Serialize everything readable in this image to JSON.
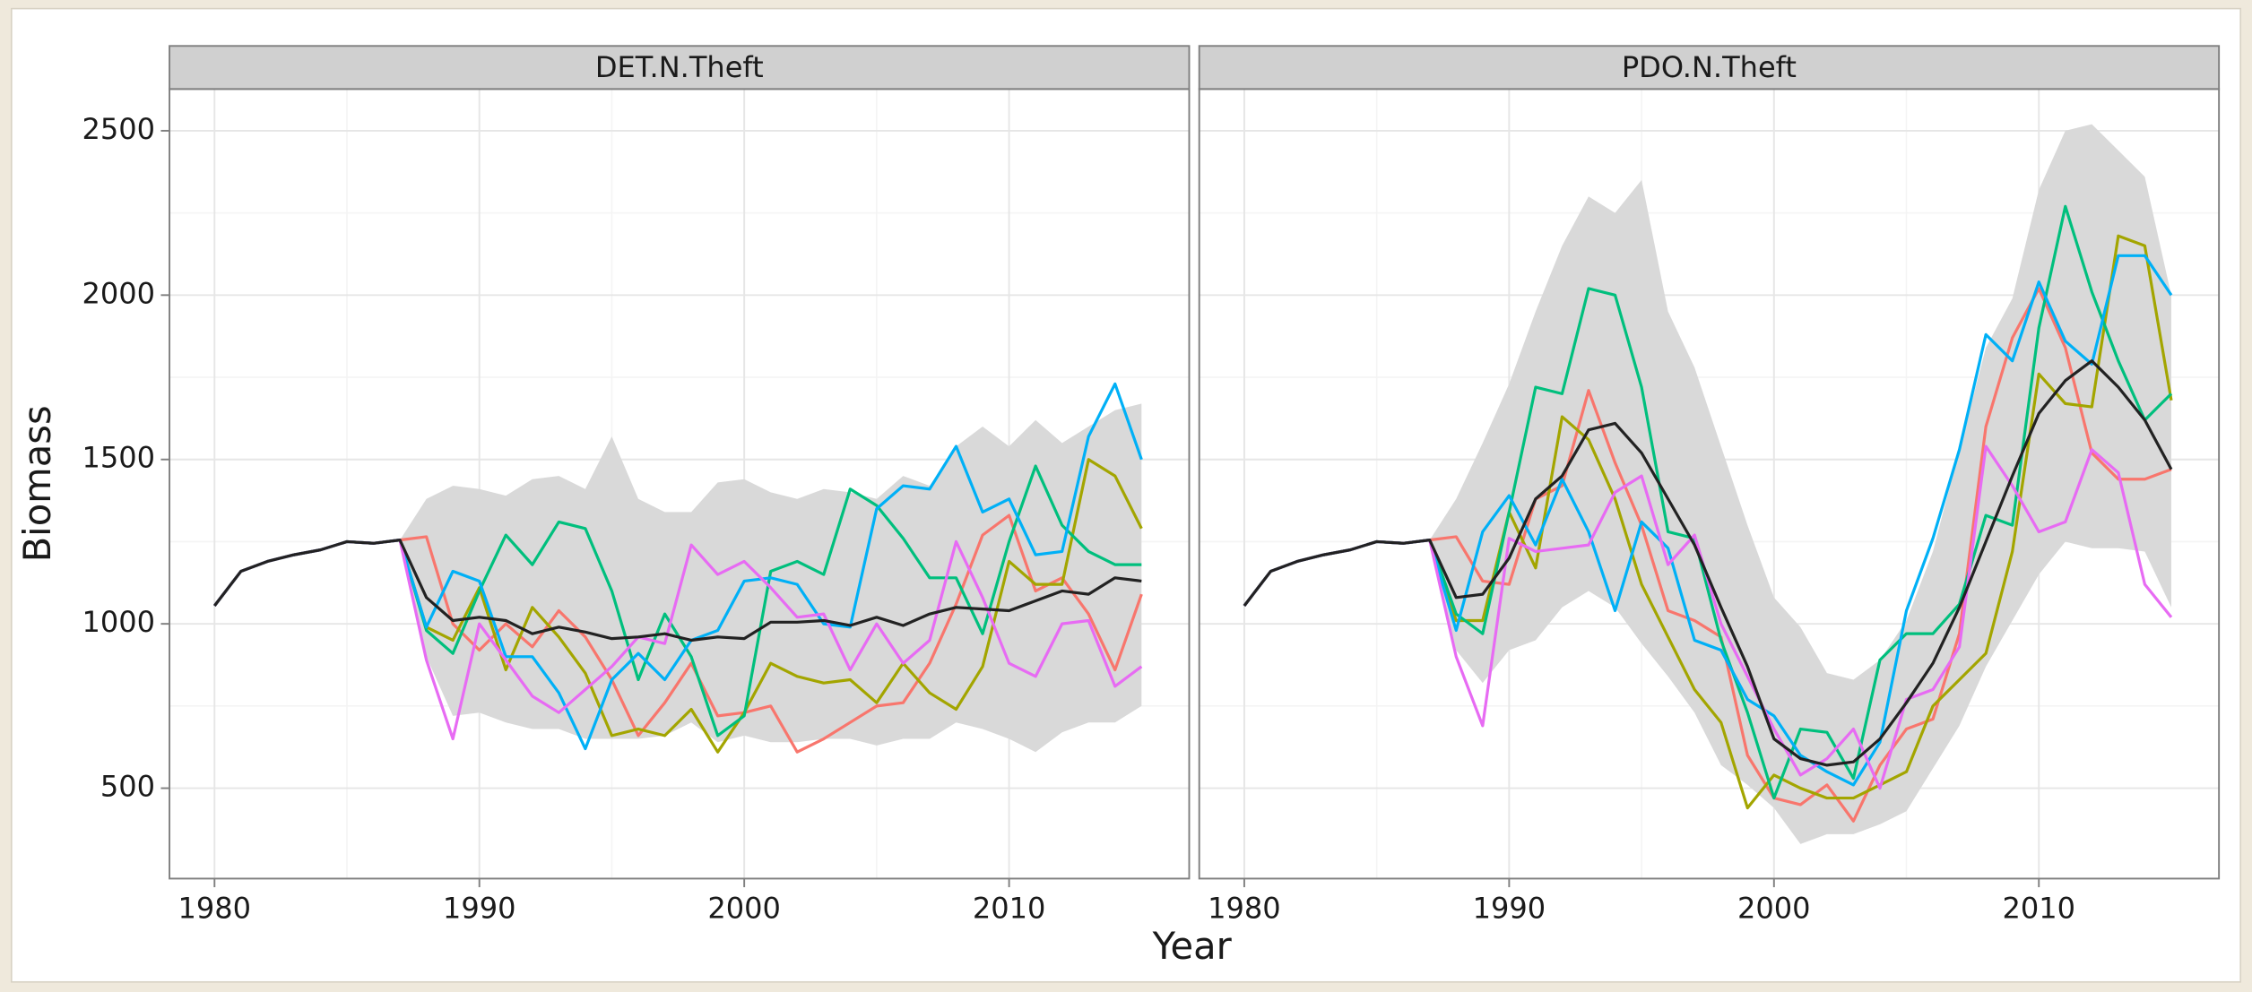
{
  "xlabel": "Year",
  "ylabel": "Biomass",
  "chart_data": [
    {
      "type": "line",
      "title": "DET.N.Theft",
      "x": [
        1980,
        1981,
        1982,
        1983,
        1984,
        1985,
        1986,
        1987,
        1988,
        1989,
        1990,
        1991,
        1992,
        1993,
        1994,
        1995,
        1996,
        1997,
        1998,
        1999,
        2000,
        2001,
        2002,
        2003,
        2004,
        2005,
        2006,
        2007,
        2008,
        2009,
        2010,
        2011,
        2012,
        2013,
        2014,
        2015
      ],
      "xlim": [
        1978.3,
        2016.8
      ],
      "ylim": [
        225,
        2627
      ],
      "xticks": [
        1980,
        1990,
        2000,
        2010
      ],
      "yticks": [
        500,
        1000,
        1500,
        2000,
        2500
      ],
      "grid": true,
      "band": {
        "color": "#d9d9d9",
        "upper": [
          null,
          null,
          null,
          null,
          null,
          null,
          null,
          1255,
          1380,
          1420,
          1410,
          1390,
          1440,
          1450,
          1410,
          1570,
          1380,
          1340,
          1340,
          1430,
          1440,
          1400,
          1380,
          1410,
          1400,
          1380,
          1450,
          1420,
          1540,
          1600,
          1540,
          1620,
          1550,
          1600,
          1650,
          1670
        ],
        "lower": [
          null,
          null,
          null,
          null,
          null,
          null,
          null,
          1255,
          900,
          720,
          730,
          700,
          680,
          680,
          650,
          650,
          650,
          660,
          700,
          640,
          660,
          640,
          640,
          650,
          650,
          630,
          650,
          650,
          700,
          680,
          650,
          610,
          670,
          700,
          700,
          750
        ]
      },
      "series": [
        {
          "color": "#222222",
          "values": [
            1055,
            1160,
            1190,
            1210,
            1225,
            1250,
            1245,
            1255,
            1080,
            1010,
            1020,
            1010,
            970,
            990,
            975,
            955,
            960,
            970,
            950,
            960,
            955,
            1005,
            1005,
            1010,
            995,
            1020,
            995,
            1030,
            1050,
            1045,
            1040,
            1070,
            1100,
            1090,
            1140,
            1130
          ]
        },
        {
          "color": "#F8766D",
          "values": [
            1055,
            1160,
            1190,
            1210,
            1225,
            1250,
            1245,
            1255,
            1265,
            1000,
            920,
            1000,
            930,
            1040,
            960,
            830,
            660,
            760,
            880,
            720,
            730,
            750,
            610,
            650,
            700,
            750,
            760,
            880,
            1060,
            1270,
            1330,
            1100,
            1140,
            1030,
            860,
            1090
          ]
        },
        {
          "color": "#A3A500",
          "values": [
            1055,
            1160,
            1190,
            1210,
            1225,
            1250,
            1245,
            1255,
            990,
            950,
            1110,
            860,
            1050,
            960,
            850,
            660,
            680,
            660,
            740,
            610,
            730,
            880,
            840,
            820,
            830,
            760,
            880,
            790,
            740,
            870,
            1190,
            1120,
            1120,
            1500,
            1450,
            1290
          ]
        },
        {
          "color": "#00BF7D",
          "values": [
            1055,
            1160,
            1190,
            1210,
            1225,
            1250,
            1245,
            1255,
            980,
            910,
            1100,
            1270,
            1180,
            1310,
            1290,
            1100,
            830,
            1030,
            900,
            660,
            720,
            1160,
            1190,
            1150,
            1410,
            1360,
            1260,
            1140,
            1140,
            970,
            1250,
            1480,
            1300,
            1220,
            1180,
            1180
          ]
        },
        {
          "color": "#00B0F6",
          "values": [
            1055,
            1160,
            1190,
            1210,
            1225,
            1250,
            1245,
            1255,
            990,
            1160,
            1130,
            900,
            900,
            790,
            620,
            830,
            910,
            830,
            950,
            980,
            1130,
            1140,
            1120,
            1000,
            990,
            1350,
            1420,
            1410,
            1540,
            1340,
            1380,
            1210,
            1220,
            1570,
            1730,
            1500
          ]
        },
        {
          "color": "#E76BF3",
          "values": [
            1055,
            1160,
            1190,
            1210,
            1225,
            1250,
            1245,
            1255,
            890,
            650,
            1000,
            890,
            780,
            730,
            800,
            870,
            960,
            940,
            1240,
            1150,
            1190,
            1110,
            1020,
            1030,
            860,
            1000,
            880,
            950,
            1250,
            1080,
            880,
            840,
            1000,
            1010,
            810,
            870
          ]
        }
      ]
    },
    {
      "type": "line",
      "title": "PDO.N.Theft",
      "x": [
        1980,
        1981,
        1982,
        1983,
        1984,
        1985,
        1986,
        1987,
        1988,
        1989,
        1990,
        1991,
        1992,
        1993,
        1994,
        1995,
        1996,
        1997,
        1998,
        1999,
        2000,
        2001,
        2002,
        2003,
        2004,
        2005,
        2006,
        2007,
        2008,
        2009,
        2010,
        2011,
        2012,
        2013,
        2014,
        2015
      ],
      "xlim": [
        1978.3,
        2016.8
      ],
      "ylim": [
        225,
        2627
      ],
      "xticks": [
        1980,
        1990,
        2000,
        2010
      ],
      "yticks": [
        500,
        1000,
        1500,
        2000,
        2500
      ],
      "grid": true,
      "band": {
        "color": "#d9d9d9",
        "upper": [
          null,
          null,
          null,
          null,
          null,
          null,
          null,
          1255,
          1380,
          1550,
          1730,
          1950,
          2150,
          2300,
          2250,
          2350,
          1950,
          1780,
          1540,
          1300,
          1080,
          990,
          850,
          830,
          890,
          1010,
          1220,
          1530,
          1840,
          1990,
          2320,
          2500,
          2520,
          2440,
          2360,
          2000
        ],
        "lower": [
          null,
          null,
          null,
          null,
          null,
          null,
          null,
          1255,
          920,
          820,
          920,
          950,
          1050,
          1100,
          1050,
          940,
          840,
          730,
          570,
          510,
          440,
          330,
          360,
          360,
          390,
          430,
          560,
          690,
          870,
          1010,
          1150,
          1250,
          1230,
          1230,
          1220,
          1050
        ]
      },
      "series": [
        {
          "color": "#222222",
          "values": [
            1055,
            1160,
            1190,
            1210,
            1225,
            1250,
            1245,
            1255,
            1080,
            1090,
            1200,
            1380,
            1450,
            1590,
            1610,
            1520,
            1380,
            1240,
            1050,
            870,
            650,
            590,
            570,
            580,
            650,
            760,
            880,
            1050,
            1250,
            1450,
            1640,
            1740,
            1800,
            1720,
            1620,
            1470
          ]
        },
        {
          "color": "#F8766D",
          "values": [
            1055,
            1160,
            1190,
            1210,
            1225,
            1250,
            1245,
            1255,
            1265,
            1130,
            1120,
            1380,
            1420,
            1710,
            1490,
            1300,
            1040,
            1010,
            960,
            600,
            470,
            450,
            510,
            400,
            570,
            680,
            710,
            970,
            1600,
            1870,
            2020,
            1840,
            1520,
            1440,
            1440,
            1470
          ]
        },
        {
          "color": "#A3A500",
          "values": [
            1055,
            1160,
            1190,
            1210,
            1225,
            1250,
            1245,
            1255,
            1010,
            1010,
            1340,
            1170,
            1630,
            1560,
            1380,
            1120,
            960,
            800,
            700,
            440,
            540,
            500,
            470,
            470,
            510,
            550,
            750,
            830,
            910,
            1220,
            1760,
            1670,
            1660,
            2180,
            2150,
            1680
          ]
        },
        {
          "color": "#00BF7D",
          "values": [
            1055,
            1160,
            1190,
            1210,
            1225,
            1250,
            1245,
            1255,
            1030,
            970,
            1340,
            1720,
            1700,
            2020,
            2000,
            1720,
            1280,
            1260,
            950,
            730,
            470,
            680,
            670,
            530,
            890,
            970,
            970,
            1060,
            1330,
            1300,
            1900,
            2270,
            2010,
            1800,
            1620,
            1700
          ]
        },
        {
          "color": "#00B0F6",
          "values": [
            1055,
            1160,
            1190,
            1210,
            1225,
            1250,
            1245,
            1255,
            980,
            1280,
            1390,
            1240,
            1440,
            1280,
            1040,
            1310,
            1230,
            950,
            920,
            770,
            720,
            600,
            550,
            510,
            640,
            1040,
            1260,
            1530,
            1880,
            1800,
            2040,
            1860,
            1790,
            2120,
            2120,
            2000
          ]
        },
        {
          "color": "#E76BF3",
          "values": [
            1055,
            1160,
            1190,
            1210,
            1225,
            1250,
            1245,
            1255,
            900,
            690,
            1260,
            1220,
            1230,
            1240,
            1400,
            1450,
            1180,
            1270,
            1000,
            840,
            680,
            540,
            590,
            680,
            500,
            770,
            800,
            930,
            1540,
            1420,
            1280,
            1310,
            1530,
            1460,
            1120,
            1020
          ]
        }
      ]
    }
  ]
}
